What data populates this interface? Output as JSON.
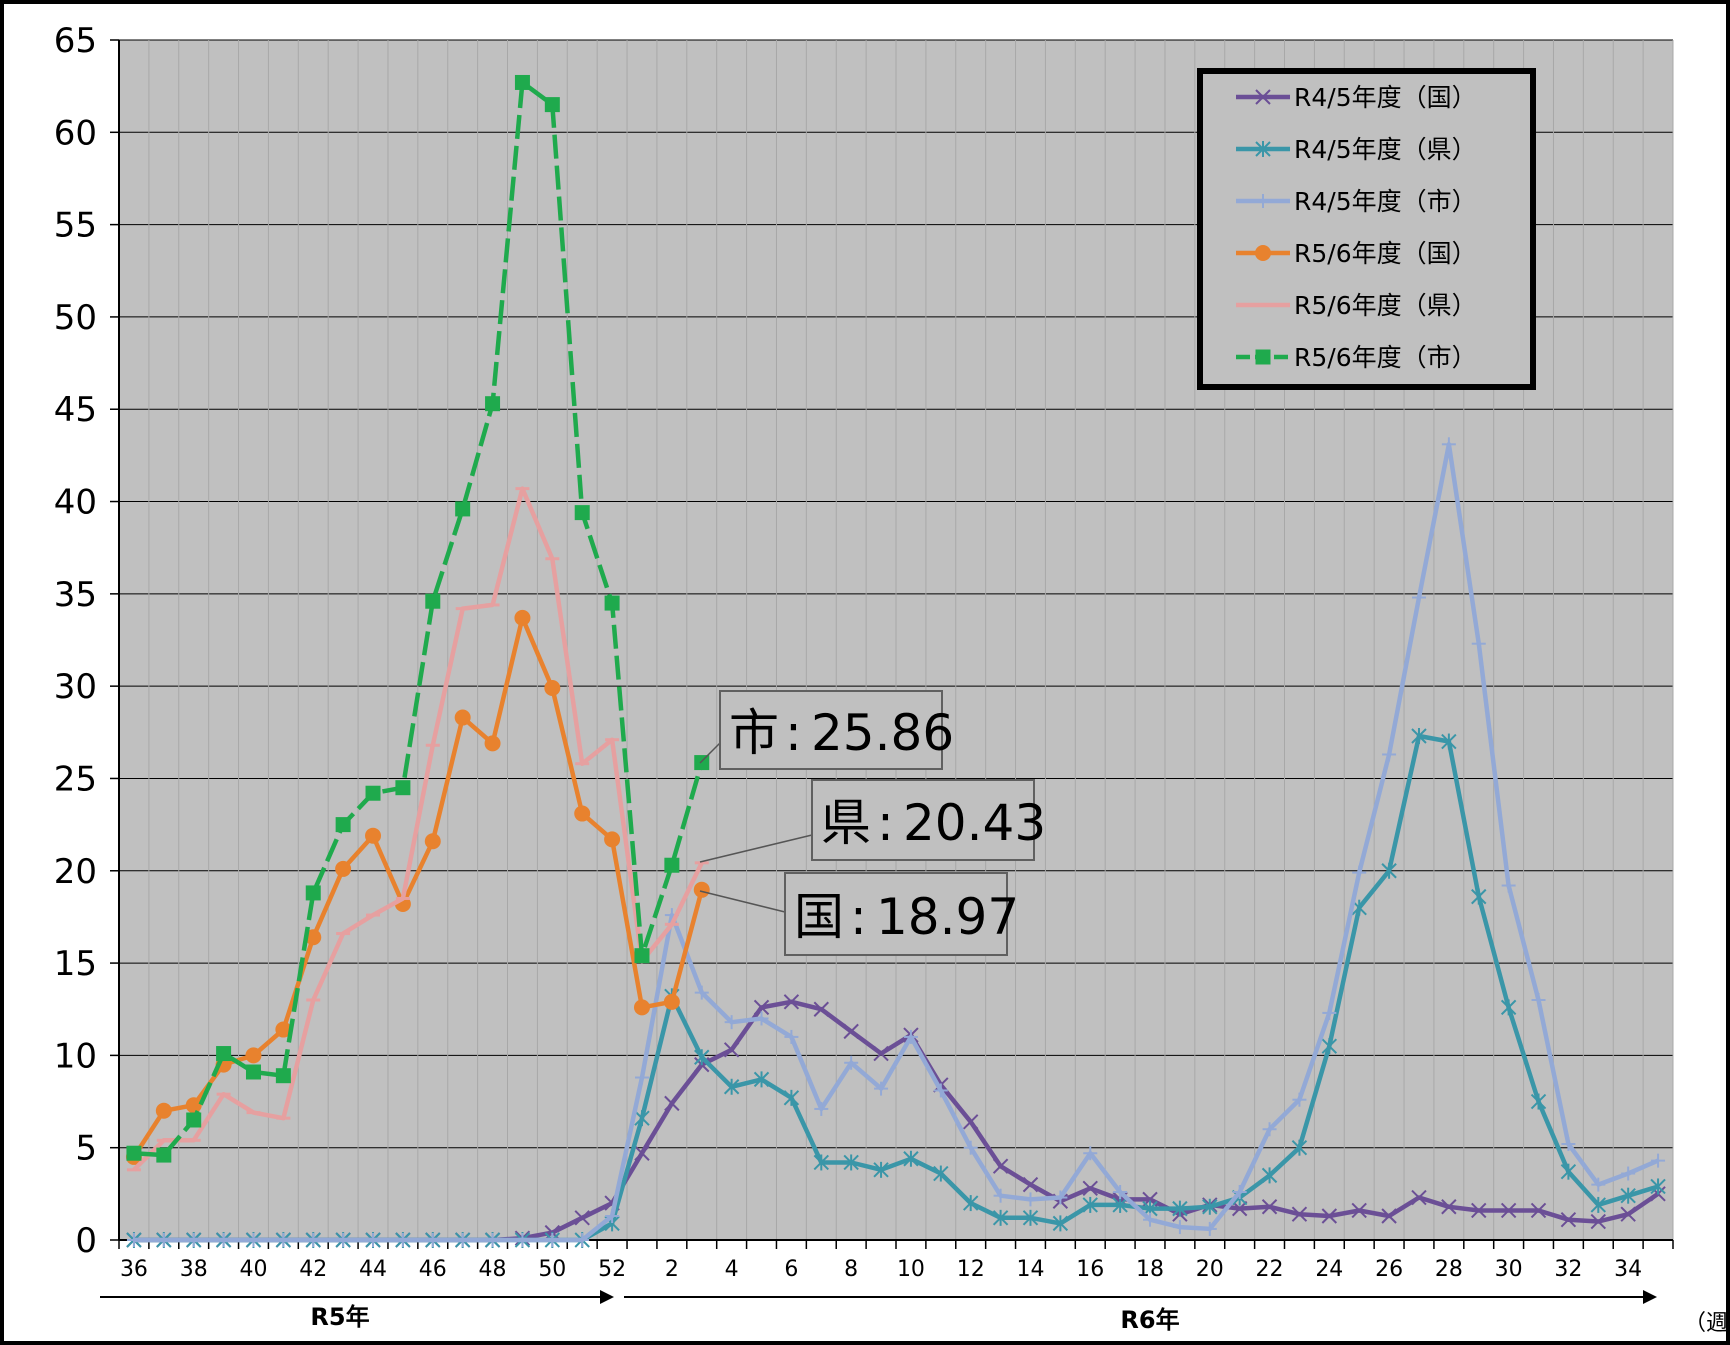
{
  "chart_data": {
    "type": "line",
    "title": "",
    "xlabel": "",
    "ylabel": "",
    "ylim": [
      0,
      65
    ],
    "y_ticks": [
      0,
      5,
      10,
      15,
      20,
      25,
      30,
      35,
      40,
      45,
      50,
      55,
      60,
      65
    ],
    "x_axis_labels": [
      "36",
      "38",
      "40",
      "42",
      "44",
      "46",
      "48",
      "50",
      "52",
      "2",
      "4",
      "6",
      "8",
      "10",
      "12",
      "14",
      "16",
      "18",
      "20",
      "22",
      "24",
      "26",
      "28",
      "30",
      "32",
      "34"
    ],
    "period_labels": {
      "year1": "R5年",
      "year2": "R6年"
    },
    "unit_label": "（週",
    "grid": true,
    "legend_position": "top-right",
    "series": [
      {
        "name": "R4/5年度（国）",
        "color": "#6b4f96",
        "marker": "x",
        "dashed": false,
        "values": [
          0,
          0,
          0,
          0,
          0,
          0,
          0,
          0,
          0,
          0,
          0,
          0,
          0,
          0.1,
          0.4,
          1.2,
          2,
          4.7,
          7.4,
          9.5,
          10.3,
          12.6,
          12.9,
          12.5,
          11.3,
          10.1,
          11.1,
          8.4,
          6.4,
          4,
          3,
          2.1,
          2.8,
          2.2,
          2.2,
          1.4,
          1.9,
          1.7,
          1.8,
          1.4,
          1.3,
          1.6,
          1.3,
          2.3,
          1.8,
          1.6,
          1.6,
          1.6,
          1.1,
          1,
          1.4,
          2.5
        ]
      },
      {
        "name": "R4/5年度（県）",
        "color": "#3a96a8",
        "marker": "star",
        "dashed": false,
        "values": [
          0,
          0,
          0,
          0,
          0,
          0,
          0,
          0,
          0,
          0,
          0,
          0,
          0,
          0,
          0,
          0,
          0.9,
          6.6,
          13.2,
          9.9,
          8.3,
          8.7,
          7.7,
          4.2,
          4.2,
          3.8,
          4.4,
          3.6,
          2,
          1.2,
          1.2,
          0.9,
          1.9,
          1.9,
          1.7,
          1.7,
          1.8,
          2.3,
          3.5,
          5,
          10.5,
          18,
          20,
          27.3,
          27,
          18.6,
          12.6,
          7.5,
          3.7,
          1.9,
          2.4,
          2.9
        ]
      },
      {
        "name": "R4/5年度（市）",
        "color": "#93a9d6",
        "marker": "plus",
        "dashed": false,
        "values": [
          0,
          0,
          0,
          0,
          0,
          0,
          0,
          0,
          0,
          0,
          0,
          0,
          0,
          0,
          0,
          0,
          1.3,
          8.8,
          17.6,
          13.4,
          11.8,
          12,
          11,
          7.1,
          9.6,
          8.2,
          11,
          8.1,
          5,
          2.4,
          2.2,
          2.3,
          4.7,
          2.6,
          1.1,
          0.7,
          0.6,
          2.6,
          6,
          7.6,
          12.3,
          19.9,
          26.3,
          34.8,
          43.1,
          32.3,
          19.2,
          13,
          5.2,
          3,
          3.6,
          4.3
        ]
      },
      {
        "name": "R5/6年度（国）",
        "color": "#e8822e",
        "marker": "circle",
        "dashed": false,
        "values": [
          4.5,
          7,
          7.3,
          9.5,
          10,
          11.4,
          16.4,
          20.1,
          21.9,
          18.2,
          21.6,
          28.3,
          26.9,
          33.7,
          29.9,
          23.1,
          21.7,
          12.6,
          12.9,
          18.97
        ]
      },
      {
        "name": "R5/6年度（県）",
        "color": "#e6a0a0",
        "marker": "dash",
        "dashed": false,
        "values": [
          3.8,
          5.4,
          5.4,
          7.9,
          6.9,
          6.6,
          13,
          16.6,
          17.6,
          18.5,
          26.8,
          34.2,
          34.4,
          40.7,
          36.9,
          25.8,
          27.1,
          15.1,
          17.1,
          20.43
        ]
      },
      {
        "name": "R5/6年度（市）",
        "color": "#1faa4d",
        "marker": "square",
        "dashed": true,
        "values": [
          4.7,
          4.6,
          6.5,
          10.1,
          9.1,
          8.9,
          18.8,
          22.5,
          24.2,
          24.5,
          34.6,
          39.6,
          45.3,
          62.7,
          61.5,
          39.4,
          34.5,
          15.4,
          20.3,
          25.86
        ]
      }
    ],
    "annotations": [
      {
        "label": "市",
        "value": "25.86",
        "series": "R5/6年度（市）"
      },
      {
        "label": "県",
        "value": "20.43",
        "series": "R5/6年度（県）"
      },
      {
        "label": "国",
        "value": "18.97",
        "series": "R5/6年度（国）"
      }
    ]
  }
}
